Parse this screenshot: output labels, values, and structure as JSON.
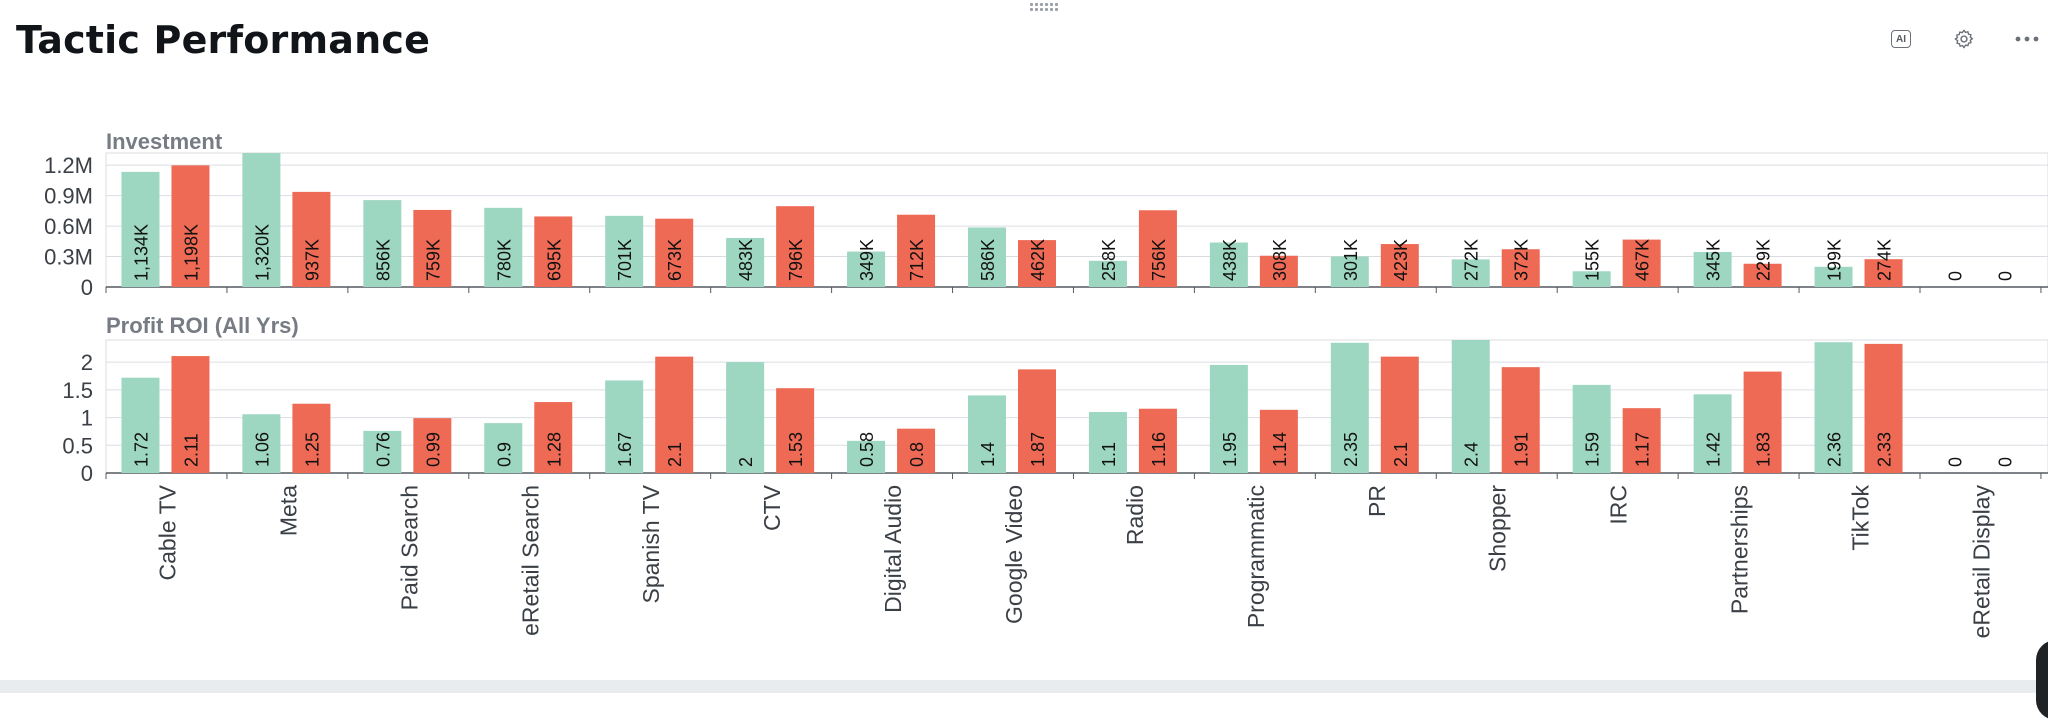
{
  "header": {
    "title": "Tactic Performance",
    "ai_label": "AI"
  },
  "icons": {
    "ai": "ai-icon",
    "settings": "gear-icon",
    "more": "more-horizontal-icon",
    "drag": "drag-handle-icon"
  },
  "colors": {
    "series_a": "#9dd6c1",
    "series_b": "#ee6a55",
    "grid": "#d9dde2",
    "axis": "#555a60"
  },
  "chart_data": [
    {
      "type": "bar",
      "title": "Investment",
      "categories": [
        "Cable TV",
        "Meta",
        "Paid Search",
        "eRetail Search",
        "Spanish TV",
        "CTV",
        "Digital Audio",
        "Google Video",
        "Radio",
        "Programmatic",
        "PR",
        "Shopper",
        "IRC",
        "Partnerships",
        "TikTok",
        "eRetail Display"
      ],
      "series": [
        {
          "values": [
            1134000,
            1320000,
            856000,
            780000,
            701000,
            483000,
            349000,
            586000,
            258000,
            438000,
            301000,
            272000,
            155000,
            345000,
            199000,
            0
          ],
          "labels": [
            "1,134K",
            "1,320K",
            "856K",
            "780K",
            "701K",
            "483K",
            "349K",
            "586K",
            "258K",
            "438K",
            "301K",
            "272K",
            "155K",
            "345K",
            "199K",
            "0"
          ]
        },
        {
          "values": [
            1198000,
            937000,
            759000,
            695000,
            673000,
            796000,
            712000,
            462000,
            756000,
            308000,
            423000,
            372000,
            467000,
            229000,
            274000,
            0
          ],
          "labels": [
            "1,198K",
            "937K",
            "759K",
            "695K",
            "673K",
            "796K",
            "712K",
            "462K",
            "756K",
            "308K",
            "423K",
            "372K",
            "467K",
            "229K",
            "274K",
            "0"
          ]
        }
      ],
      "ylim": [
        0,
        1320000
      ],
      "yticks": [
        0,
        300000,
        600000,
        900000,
        1200000
      ],
      "ytick_labels": [
        "0",
        "0.3M",
        "0.6M",
        "0.9M",
        "1.2M"
      ],
      "grid": true
    },
    {
      "type": "bar",
      "title": "Profit ROI (All Yrs)",
      "categories": [
        "Cable TV",
        "Meta",
        "Paid Search",
        "eRetail Search",
        "Spanish TV",
        "CTV",
        "Digital Audio",
        "Google Video",
        "Radio",
        "Programmatic",
        "PR",
        "Shopper",
        "IRC",
        "Partnerships",
        "TikTok",
        "eRetail Display"
      ],
      "series": [
        {
          "values": [
            1.72,
            1.06,
            0.76,
            0.9,
            1.67,
            2,
            0.58,
            1.4,
            1.1,
            1.95,
            2.35,
            2.4,
            1.59,
            1.42,
            2.36,
            0
          ],
          "labels": [
            "1.72",
            "1.06",
            "0.76",
            "0.9",
            "1.67",
            "2",
            "0.58",
            "1.4",
            "1.1",
            "1.95",
            "2.35",
            "2.4",
            "1.59",
            "1.42",
            "2.36",
            "0"
          ]
        },
        {
          "values": [
            2.11,
            1.25,
            0.99,
            1.28,
            2.1,
            1.53,
            0.8,
            1.87,
            1.16,
            1.14,
            2.1,
            1.91,
            1.17,
            1.83,
            2.33,
            0
          ],
          "labels": [
            "2.11",
            "1.25",
            "0.99",
            "1.28",
            "2.1",
            "1.53",
            "0.8",
            "1.87",
            "1.16",
            "1.14",
            "2.1",
            "1.91",
            "1.17",
            "1.83",
            "2.33",
            "0"
          ]
        }
      ],
      "ylim": [
        0,
        2.4
      ],
      "yticks": [
        0,
        0.5,
        1,
        1.5,
        2
      ],
      "ytick_labels": [
        "0",
        "0.5",
        "1",
        "1.5",
        "2"
      ],
      "grid": true
    }
  ]
}
